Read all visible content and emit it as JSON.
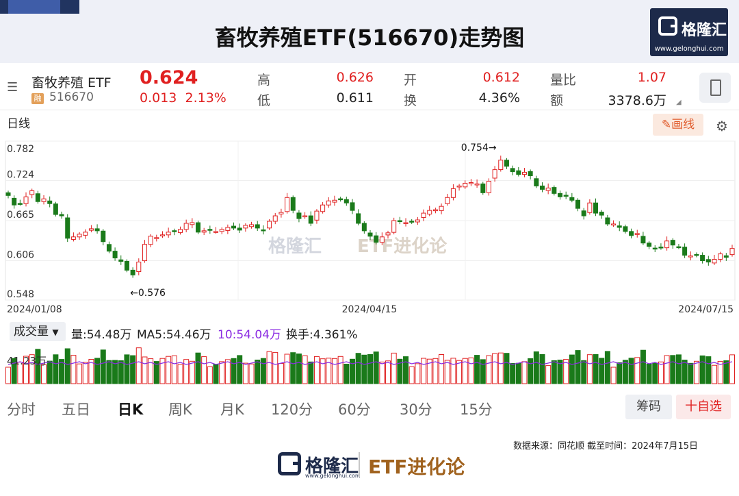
{
  "page": {
    "title": "畜牧养殖ETF(516670)走势图",
    "logo": {
      "name": "格隆汇",
      "url": "www.gelonghui.com"
    }
  },
  "quote": {
    "name": "畜牧养殖 ETF",
    "badge": "融",
    "code": "516670",
    "price": "0.624",
    "change": "0.013",
    "change_pct": "2.13%",
    "stats": [
      {
        "label": "高",
        "value": "0.626",
        "color": "red"
      },
      {
        "label": "开",
        "value": "0.612",
        "color": "red"
      },
      {
        "label": "量比",
        "value": "1.07",
        "color": "red"
      },
      {
        "label": "低",
        "value": "0.611",
        "color": "dark"
      },
      {
        "label": "换",
        "value": "4.36%",
        "color": "dark"
      },
      {
        "label": "额",
        "value": "3378.6万",
        "color": "dark"
      }
    ]
  },
  "toolbar": {
    "period_label": "日线",
    "draw_label": "画线",
    "draw_icon": "pencil-icon",
    "settings_icon": "gear-icon"
  },
  "watermark": {
    "name": "格隆汇",
    "url": "www.gelonghui.com",
    "brand": "ETF进化论"
  },
  "chart_data": {
    "type": "candlestick",
    "x_range": [
      "2024/01/08",
      "2024/07/15"
    ],
    "x_ticks": [
      "2024/01/08",
      "2024/04/15",
      "2024/07/15"
    ],
    "y_ticks": [
      "0.782",
      "0.724",
      "0.665",
      "0.606",
      "0.548"
    ],
    "ylim": [
      0.548,
      0.782
    ],
    "annotations": [
      {
        "text": "0.754→",
        "value": 0.754
      },
      {
        "text": "←0.576",
        "value": 0.576
      }
    ],
    "up_color": "#e02020",
    "down_color": "#1a7a1a",
    "closes": [
      0.702,
      0.688,
      0.69,
      0.7,
      0.709,
      0.693,
      0.697,
      0.69,
      0.674,
      0.672,
      0.639,
      0.641,
      0.645,
      0.648,
      0.653,
      0.65,
      0.634,
      0.62,
      0.61,
      0.605,
      0.592,
      0.585,
      0.604,
      0.63,
      0.642,
      0.64,
      0.644,
      0.648,
      0.649,
      0.652,
      0.661,
      0.662,
      0.648,
      0.65,
      0.651,
      0.649,
      0.652,
      0.655,
      0.654,
      0.651,
      0.658,
      0.659,
      0.654,
      0.65,
      0.664,
      0.672,
      0.677,
      0.699,
      0.68,
      0.668,
      0.672,
      0.661,
      0.679,
      0.688,
      0.694,
      0.695,
      0.696,
      0.691,
      0.68,
      0.661,
      0.65,
      0.642,
      0.633,
      0.641,
      0.647,
      0.665,
      0.664,
      0.662,
      0.663,
      0.666,
      0.676,
      0.68,
      0.681,
      0.686,
      0.699,
      0.712,
      0.716,
      0.72,
      0.721,
      0.719,
      0.706,
      0.723,
      0.74,
      0.754,
      0.745,
      0.737,
      0.733,
      0.736,
      0.731,
      0.716,
      0.711,
      0.713,
      0.705,
      0.7,
      0.702,
      0.695,
      0.683,
      0.672,
      0.691,
      0.676,
      0.673,
      0.66,
      0.66,
      0.655,
      0.649,
      0.643,
      0.646,
      0.632,
      0.627,
      0.624,
      0.625,
      0.635,
      0.629,
      0.626,
      0.614,
      0.613,
      0.614,
      0.606,
      0.604,
      0.608,
      0.616,
      0.611,
      0.624
    ]
  },
  "volume": {
    "selector_label": "成交量",
    "vol_text": "量:54.48万",
    "ma5_text": "MA5:54.46万",
    "ma10_text": "10:54.04万",
    "turnover_text": "换手:4.361%",
    "axis_label": "41.23万",
    "ma10_color": "#8a2be2"
  },
  "periods": [
    "分时",
    "五日",
    "日K",
    "周K",
    "月K",
    "120分",
    "60分",
    "30分",
    "15分"
  ],
  "active_period": "日K",
  "actions": {
    "chip_label": "筹码",
    "fav_label": "十自选"
  },
  "source_text": "数据来源：同花顺    截至时间：2024年7月15日",
  "footer": {
    "name": "格隆汇",
    "url": "www.gelonghui.com",
    "brand": "ETF进化论"
  }
}
